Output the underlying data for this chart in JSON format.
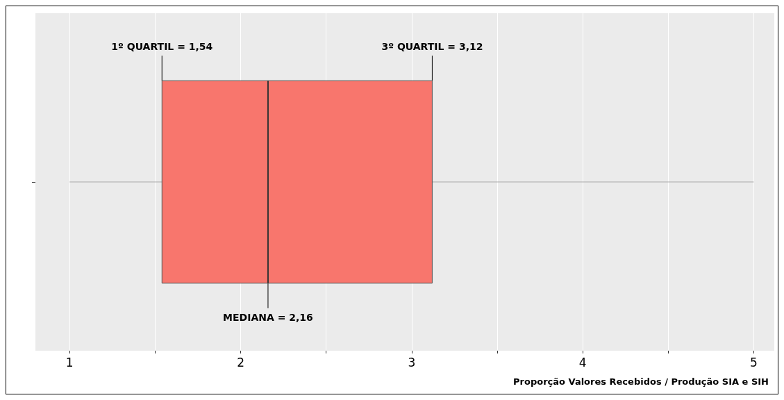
{
  "chart_data": {
    "type": "box",
    "orientation": "horizontal",
    "categories": [
      null
    ],
    "series": [
      {
        "color": "#f8766d",
        "boxes": [
          {
            "low": 1,
            "q1": 1.54,
            "median": 2.16,
            "q3": 3.12,
            "high": 5
          }
        ]
      }
    ],
    "xlim": [
      0.8,
      5.12
    ],
    "xticks": [
      1,
      {
        "value": 1.5,
        "label": null
      },
      2,
      {
        "value": 2.5,
        "label": null
      },
      3,
      {
        "value": 3.5,
        "label": null
      },
      4,
      {
        "value": 4.5,
        "label": null
      },
      5
    ],
    "xlabel": "Proporção Valores Recebidos / Produção SIA e SIH",
    "annotations": [
      "1º QUARTIL = 1,54",
      "3º QUARTIL = 3,12",
      "MEDIANA = 2,16"
    ],
    "grid": "x"
  }
}
